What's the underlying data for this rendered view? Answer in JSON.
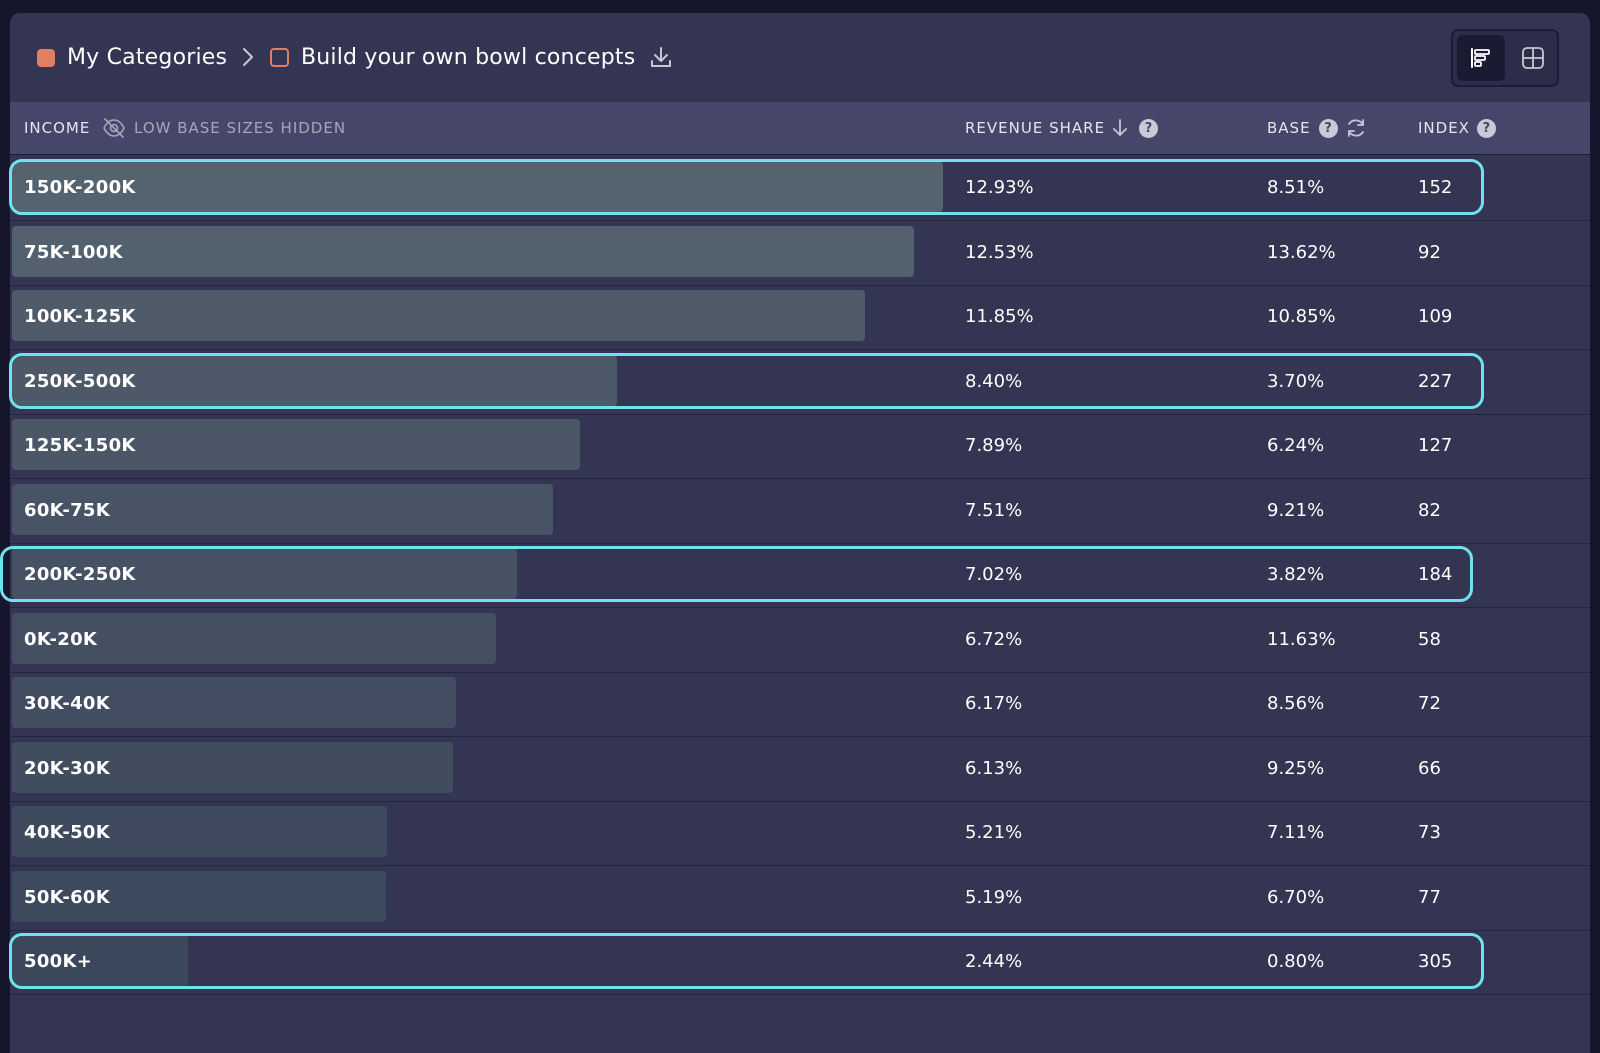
{
  "breadcrumb": {
    "root_label": "My Categories",
    "current_label": "Build your own bowl concepts",
    "accent_color": "#e27e62"
  },
  "view_toggle": {
    "active": "bar-chart-view",
    "options": [
      "bar-chart-view",
      "grid-view"
    ]
  },
  "table": {
    "headers": {
      "dimension": "INCOME",
      "low_base_note": "LOW BASE SIZES HIDDEN",
      "revenue_share": "REVENUE SHARE",
      "base": "BASE",
      "index": "INDEX"
    },
    "sort": {
      "column": "revenue_share",
      "direction": "descending"
    },
    "rows": [
      {
        "label": "150K-200K",
        "revenue_share": "12.93%",
        "base": "8.51%",
        "index": "152",
        "share_value": 12.93,
        "highlighted": true
      },
      {
        "label": "75K-100K",
        "revenue_share": "12.53%",
        "base": "13.62%",
        "index": "92",
        "share_value": 12.53,
        "highlighted": false
      },
      {
        "label": "100K-125K",
        "revenue_share": "11.85%",
        "base": "10.85%",
        "index": "109",
        "share_value": 11.85,
        "highlighted": false
      },
      {
        "label": "250K-500K",
        "revenue_share": "8.40%",
        "base": "3.70%",
        "index": "227",
        "share_value": 8.4,
        "highlighted": true
      },
      {
        "label": "125K-150K",
        "revenue_share": "7.89%",
        "base": "6.24%",
        "index": "127",
        "share_value": 7.89,
        "highlighted": false
      },
      {
        "label": "60K-75K",
        "revenue_share": "7.51%",
        "base": "9.21%",
        "index": "82",
        "share_value": 7.51,
        "highlighted": false
      },
      {
        "label": "200K-250K",
        "revenue_share": "7.02%",
        "base": "3.82%",
        "index": "184",
        "share_value": 7.02,
        "highlighted": true
      },
      {
        "label": "0K-20K",
        "revenue_share": "6.72%",
        "base": "11.63%",
        "index": "58",
        "share_value": 6.72,
        "highlighted": false
      },
      {
        "label": "30K-40K",
        "revenue_share": "6.17%",
        "base": "8.56%",
        "index": "72",
        "share_value": 6.17,
        "highlighted": false
      },
      {
        "label": "20K-30K",
        "revenue_share": "6.13%",
        "base": "9.25%",
        "index": "66",
        "share_value": 6.13,
        "highlighted": false
      },
      {
        "label": "40K-50K",
        "revenue_share": "5.21%",
        "base": "7.11%",
        "index": "73",
        "share_value": 5.21,
        "highlighted": false
      },
      {
        "label": "50K-60K",
        "revenue_share": "5.19%",
        "base": "6.70%",
        "index": "77",
        "share_value": 5.19,
        "highlighted": false
      },
      {
        "label": "500K+",
        "revenue_share": "2.44%",
        "base": "0.80%",
        "index": "305",
        "share_value": 2.44,
        "highlighted": true
      }
    ]
  },
  "colors": {
    "background": "#15162b",
    "panel": "#333553",
    "header": "#454669",
    "highlight_outline": "#6ee3ef"
  }
}
